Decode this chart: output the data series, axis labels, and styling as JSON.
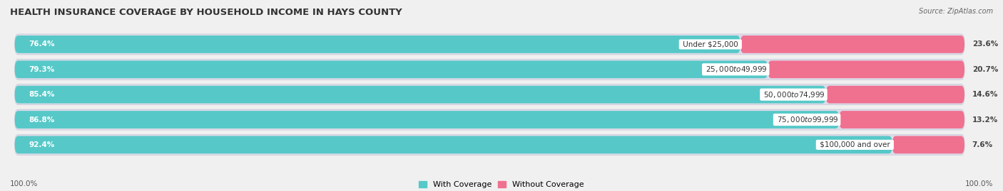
{
  "title": "HEALTH INSURANCE COVERAGE BY HOUSEHOLD INCOME IN HAYS COUNTY",
  "source": "Source: ZipAtlas.com",
  "categories": [
    "Under $25,000",
    "$25,000 to $49,999",
    "$50,000 to $74,999",
    "$75,000 to $99,999",
    "$100,000 and over"
  ],
  "with_coverage": [
    76.4,
    79.3,
    85.4,
    86.8,
    92.4
  ],
  "without_coverage": [
    23.6,
    20.7,
    14.6,
    13.2,
    7.6
  ],
  "coverage_color": "#56C8C8",
  "no_coverage_color": "#F07090",
  "bg_color": "#f0f0f0",
  "row_bg_color": "#e0e0e8",
  "title_fontsize": 9.5,
  "label_fontsize": 7.5,
  "legend_fontsize": 8,
  "footer_fontsize": 7.5,
  "x_left_label": "100.0%",
  "x_right_label": "100.0%"
}
